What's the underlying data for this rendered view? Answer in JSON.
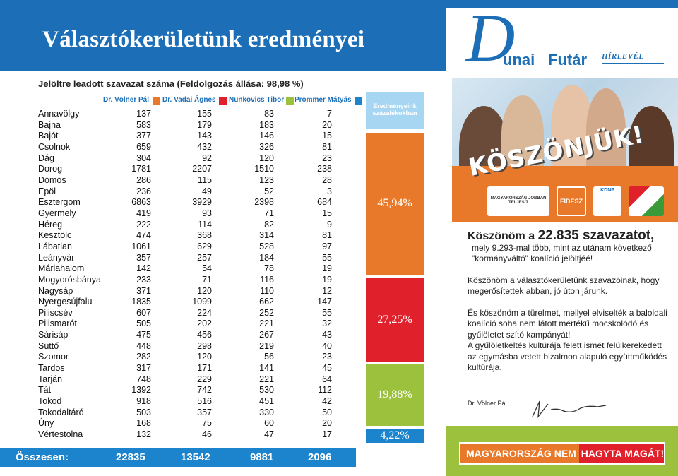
{
  "title": "Választókerületünk eredményei",
  "subheading": "Jelöltre leadott szavazat száma (Feldolgozás állása: 98,98 %)",
  "candidates": [
    {
      "name": "Dr. Völner Pál",
      "color": "#e9792a"
    },
    {
      "name": "Dr. Vadai Ágnes",
      "color": "#e0202a"
    },
    {
      "name": "Nunkovics Tibor",
      "color": "#9cc13c"
    },
    {
      "name": "Prommer Mátyás",
      "color": "#1c84cc"
    }
  ],
  "rows": [
    {
      "name": "Annavölgy",
      "v": [
        "137",
        "155",
        "83",
        "7"
      ]
    },
    {
      "name": "Bajna",
      "v": [
        "583",
        "179",
        "183",
        "20"
      ]
    },
    {
      "name": "Bajót",
      "v": [
        "377",
        "143",
        "146",
        "15"
      ]
    },
    {
      "name": "Csolnok",
      "v": [
        "659",
        "432",
        "326",
        "81"
      ]
    },
    {
      "name": "Dág",
      "v": [
        "304",
        "92",
        "120",
        "23"
      ]
    },
    {
      "name": "Dorog",
      "v": [
        "1781",
        "2207",
        "1510",
        "238"
      ]
    },
    {
      "name": "Dömös",
      "v": [
        "286",
        "115",
        "123",
        "28"
      ]
    },
    {
      "name": "Epöl",
      "v": [
        "236",
        "49",
        "52",
        "3"
      ]
    },
    {
      "name": "Esztergom",
      "v": [
        "6863",
        "3929",
        "2398",
        "684"
      ]
    },
    {
      "name": "Gyermely",
      "v": [
        "419",
        "93",
        "71",
        "15"
      ]
    },
    {
      "name": "Héreg",
      "v": [
        "222",
        "114",
        "82",
        "9"
      ]
    },
    {
      "name": "Kesztölc",
      "v": [
        "474",
        "368",
        "314",
        "81"
      ]
    },
    {
      "name": "Lábatlan",
      "v": [
        "1061",
        "629",
        "528",
        "97"
      ]
    },
    {
      "name": "Leányvár",
      "v": [
        "357",
        "257",
        "184",
        "55"
      ]
    },
    {
      "name": "Máriahalom",
      "v": [
        "142",
        "54",
        "78",
        "19"
      ]
    },
    {
      "name": "Mogyorósbánya",
      "v": [
        "233",
        "71",
        "116",
        "19"
      ]
    },
    {
      "name": "Nagysáp",
      "v": [
        "371",
        "120",
        "110",
        "12"
      ]
    },
    {
      "name": "Nyergesújfalu",
      "v": [
        "1835",
        "1099",
        "662",
        "147"
      ]
    },
    {
      "name": "Piliscsév",
      "v": [
        "607",
        "224",
        "252",
        "55"
      ]
    },
    {
      "name": "Pilismarót",
      "v": [
        "505",
        "202",
        "221",
        "32"
      ]
    },
    {
      "name": "Sárisáp",
      "v": [
        "475",
        "456",
        "267",
        "43"
      ]
    },
    {
      "name": "Süttő",
      "v": [
        "448",
        "298",
        "219",
        "40"
      ]
    },
    {
      "name": "Szomor",
      "v": [
        "282",
        "120",
        "56",
        "23"
      ]
    },
    {
      "name": "Tardos",
      "v": [
        "317",
        "171",
        "141",
        "45"
      ]
    },
    {
      "name": "Tarján",
      "v": [
        "748",
        "229",
        "221",
        "64"
      ]
    },
    {
      "name": "Tát",
      "v": [
        "1392",
        "742",
        "530",
        "112"
      ]
    },
    {
      "name": "Tokod",
      "v": [
        "918",
        "516",
        "451",
        "42"
      ]
    },
    {
      "name": "Tokodaltáró",
      "v": [
        "503",
        "357",
        "330",
        "50"
      ]
    },
    {
      "name": "Úny",
      "v": [
        "168",
        "75",
        "60",
        "20"
      ]
    },
    {
      "name": "Vértestolna",
      "v": [
        "132",
        "46",
        "47",
        "17"
      ]
    }
  ],
  "totals": {
    "label": "Összesen:",
    "values": [
      "22835",
      "13542",
      "9881",
      "2096"
    ]
  },
  "percent_header": "Eredményeink százalékokban",
  "percents": [
    {
      "label": "45,94%",
      "value": 45.94,
      "color": "#e9792a"
    },
    {
      "label": "27,25%",
      "value": 27.25,
      "color": "#e0202a"
    },
    {
      "label": "19,88%",
      "value": 19.88,
      "color": "#9cc13c"
    },
    {
      "label": "4,22%",
      "value": 4.22,
      "color": "#1c84cc"
    }
  ],
  "brand": {
    "d": "D",
    "unai": "unai",
    "futar": "Futár",
    "hirlevel": "HÍRLEVÉL"
  },
  "banner": "KÖSZÖNJÜK!",
  "party_logos": [
    "MAGYARORSZÁG JOBBAN TELJESÍT",
    "FIDESZ",
    "KDNP",
    ""
  ],
  "letter": {
    "p1_a": "Köszönöm a ",
    "p1_num": "22.835 szavazatot,",
    "p1_b": "mely 9.293-mal több, mint az utánam következő  \"kormányváltó\" koalíció jelöltjéé!",
    "p2": "Köszönöm a választókerületünk szavazóinak, hogy megerősítettek abban, jó úton járunk.",
    "p3_a": "És köszönöm a türelmet, mellyel elviselték a baloldali koalíció soha nem látott mértékű mocskolódó és gyűlöletet szító kampányát!",
    "p3_b": "A gyűlöletkeltés kultúrája felett ismét felülkerekedett az egymásba vetett bizalmon alapuló együttműködés kultúrája."
  },
  "signer": "Dr. Völner Pál",
  "slogan": {
    "a": "MAGYARORSZÁG NEM ",
    "b": "HAGYTA MAGÁT!"
  }
}
